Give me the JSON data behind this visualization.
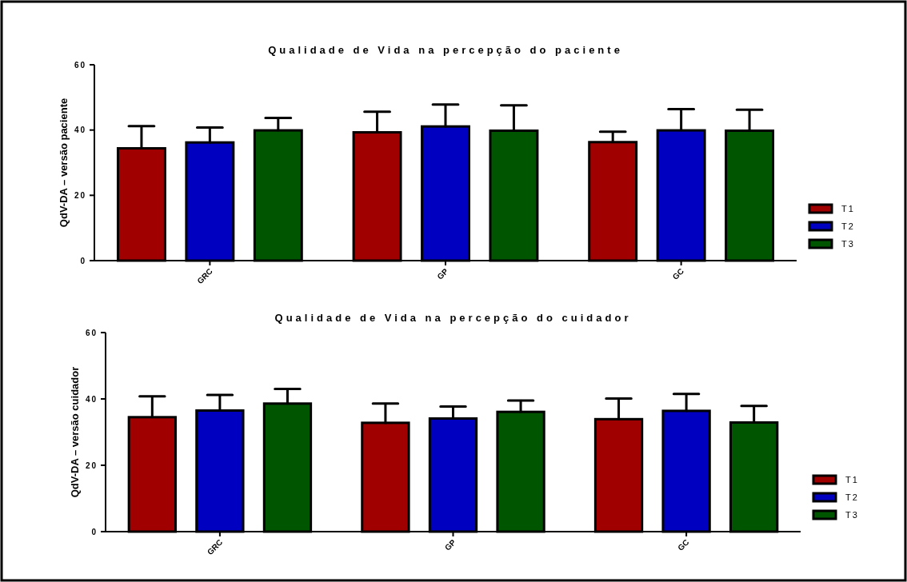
{
  "chart_data": [
    {
      "type": "bar",
      "title": "Qualidade de Vida na percepção do paciente",
      "ylabel": "QdV-DA – versão paciente",
      "categories": [
        "GRC",
        "GP",
        "GC"
      ],
      "ylim": [
        0,
        60
      ],
      "yticks": [
        0,
        20,
        40,
        60
      ],
      "legend": "right",
      "series": [
        {
          "name": "T1",
          "color": "#a00000",
          "values": [
            34.4,
            39.3,
            36.3
          ],
          "errors": [
            [
              34.4,
              41.2
            ],
            [
              39.3,
              45.6
            ],
            [
              36.3,
              39.5
            ]
          ]
        },
        {
          "name": "T2",
          "color": "#0000c0",
          "values": [
            36.2,
            41.1,
            39.9
          ],
          "errors": [
            [
              36.2,
              40.8
            ],
            [
              41.1,
              47.8
            ],
            [
              39.9,
              46.4
            ]
          ]
        },
        {
          "name": "T3",
          "color": "#005500",
          "values": [
            39.9,
            39.8,
            39.8
          ],
          "errors": [
            [
              39.9,
              43.7
            ],
            [
              39.8,
              47.6
            ],
            [
              39.8,
              46.2
            ]
          ]
        }
      ]
    },
    {
      "type": "bar",
      "title": "Qualidade de Vida na percepção do cuidador",
      "ylabel": "QdV-DA – versão cuidador",
      "categories": [
        "GRC",
        "GP",
        "GC"
      ],
      "ylim": [
        0,
        60
      ],
      "yticks": [
        0,
        20,
        40,
        60
      ],
      "legend": "right",
      "series": [
        {
          "name": "T1",
          "color": "#a00000",
          "values": [
            34.5,
            32.8,
            33.9
          ],
          "errors": [
            [
              34.5,
              40.8
            ],
            [
              32.8,
              38.6
            ],
            [
              33.9,
              40.1
            ]
          ]
        },
        {
          "name": "T2",
          "color": "#0000c0",
          "values": [
            36.5,
            34.1,
            36.4
          ],
          "errors": [
            [
              36.5,
              41.2
            ],
            [
              34.1,
              37.7
            ],
            [
              36.4,
              41.5
            ]
          ]
        },
        {
          "name": "T3",
          "color": "#005500",
          "values": [
            38.6,
            36.1,
            32.9
          ],
          "errors": [
            [
              38.6,
              43.0
            ],
            [
              36.1,
              39.5
            ],
            [
              32.9,
              37.9
            ]
          ]
        }
      ]
    }
  ]
}
